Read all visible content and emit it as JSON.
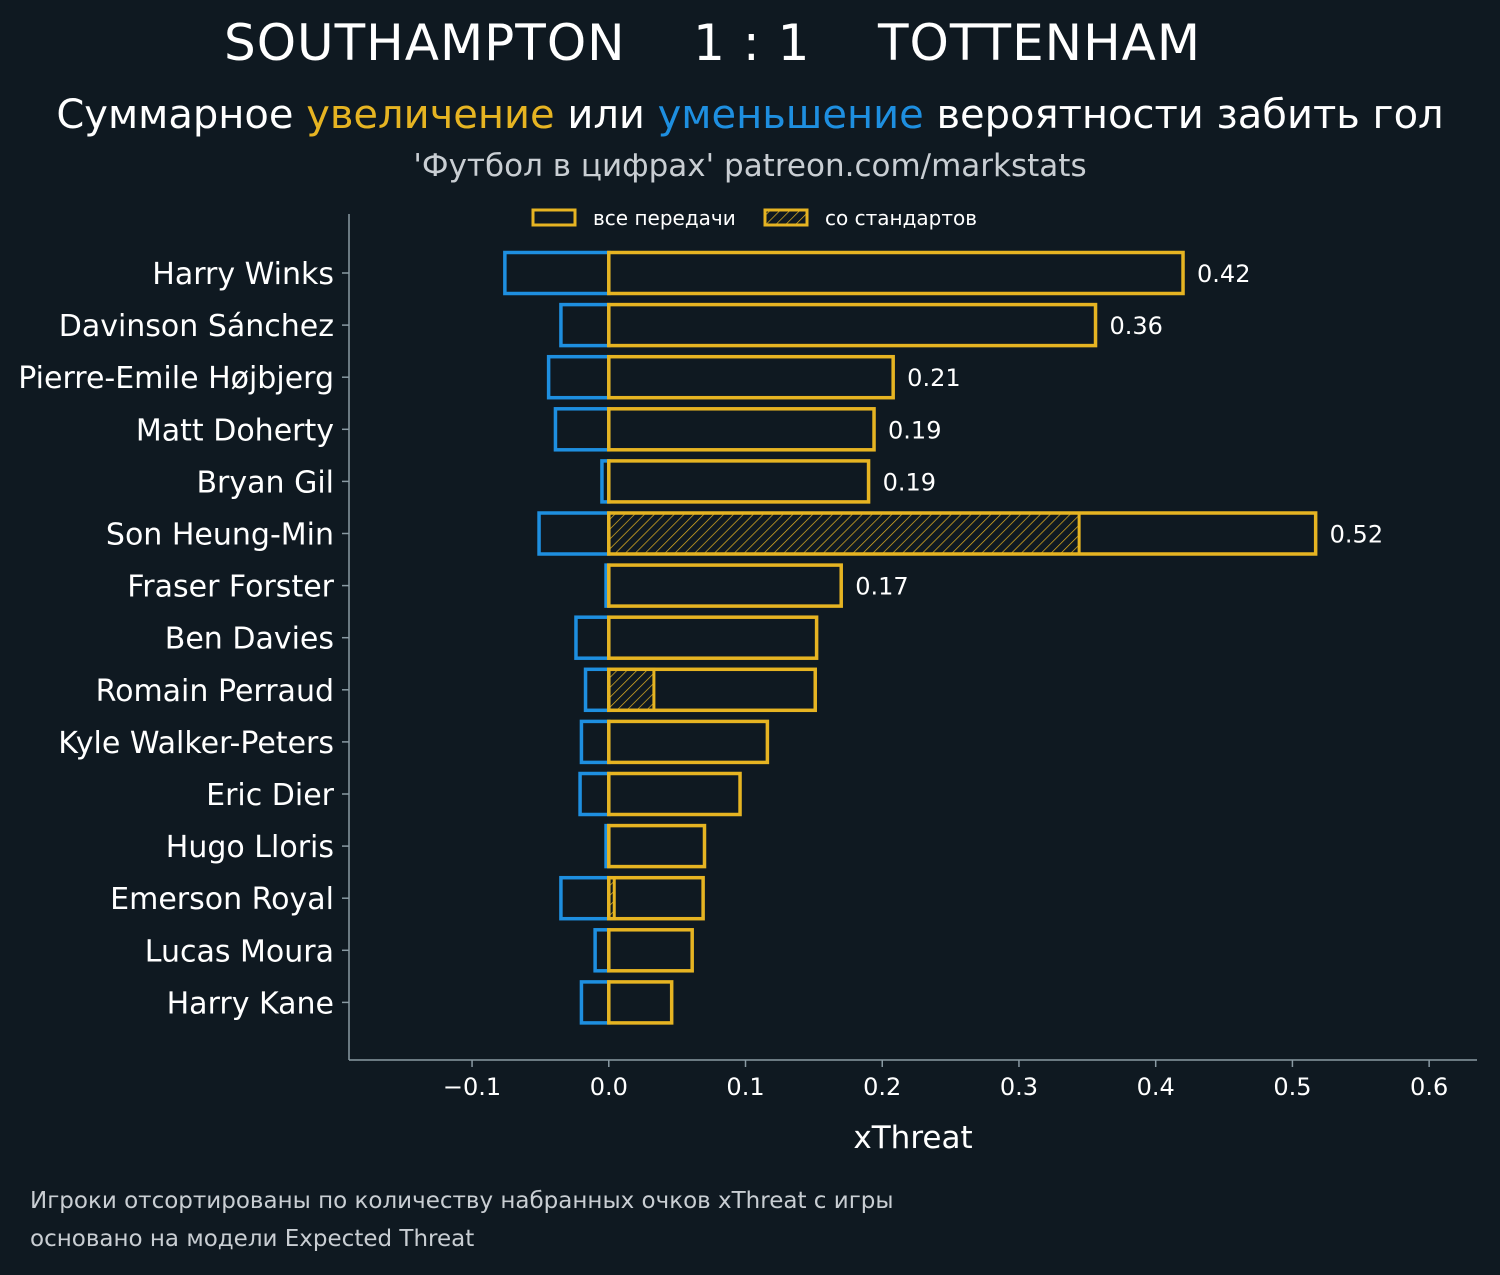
{
  "header": {
    "title": "SOUTHAMPTON    1 : 1    TOTTENHAM",
    "subtitle_parts": [
      {
        "text": "Суммарное ",
        "color": "#ffffff"
      },
      {
        "text": "увеличение",
        "color": "#e6b422"
      },
      {
        "text": " или ",
        "color": "#ffffff"
      },
      {
        "text": "уменьшение",
        "color": "#1e8fe0"
      },
      {
        "text": " вероятности забить гол",
        "color": "#ffffff"
      }
    ],
    "credit": "'Футбол в цифрах' patreon.com/markstats"
  },
  "footer": {
    "line1": "Игроки отсортированы по количеству набранных очков xThreat с игры",
    "line2": "основано на модели Expected Threat"
  },
  "colors": {
    "background": "#0f1921",
    "positive": "#e6b422",
    "negative": "#1e8fe0",
    "axis": "#8a9aa3"
  },
  "chart_data": {
    "type": "bar",
    "orientation": "horizontal",
    "xlabel": "xThreat",
    "xlim": [
      -0.19,
      0.635
    ],
    "xticks": [
      -0.1,
      0.0,
      0.1,
      0.2,
      0.3,
      0.4,
      0.5,
      0.6
    ],
    "xtick_labels": [
      "−0.1",
      "0.0",
      "0.1",
      "0.2",
      "0.3",
      "0.4",
      "0.5",
      "0.6"
    ],
    "legend": {
      "position": "top",
      "entries": [
        {
          "label": "все передачи",
          "style": "outline"
        },
        {
          "label": "со стандартов",
          "style": "hatched"
        }
      ]
    },
    "players": [
      {
        "name": "Harry Winks",
        "positive": 0.42,
        "negative": -0.076,
        "set_piece": 0,
        "label": "0.42"
      },
      {
        "name": "Davinson Sánchez",
        "positive": 0.356,
        "negative": -0.035,
        "set_piece": 0,
        "label": "0.36"
      },
      {
        "name": "Pierre-Emile Højbjerg",
        "positive": 0.208,
        "negative": -0.044,
        "set_piece": 0,
        "label": "0.21"
      },
      {
        "name": "Matt Doherty",
        "positive": 0.194,
        "negative": -0.039,
        "set_piece": 0,
        "label": "0.19"
      },
      {
        "name": "Bryan Gil",
        "positive": 0.19,
        "negative": -0.005,
        "set_piece": 0,
        "label": "0.19"
      },
      {
        "name": "Son Heung-Min",
        "positive": 0.517,
        "negative": -0.051,
        "set_piece": 0.344,
        "label": "0.52"
      },
      {
        "name": "Fraser Forster",
        "positive": 0.17,
        "negative": -0.002,
        "set_piece": 0,
        "label": "0.17"
      },
      {
        "name": "Ben Davies",
        "positive": 0.152,
        "negative": -0.024,
        "set_piece": 0,
        "label": ""
      },
      {
        "name": "Romain Perraud",
        "positive": 0.151,
        "negative": -0.017,
        "set_piece": 0.033,
        "label": ""
      },
      {
        "name": "Kyle Walker-Peters",
        "positive": 0.116,
        "negative": -0.02,
        "set_piece": 0,
        "label": ""
      },
      {
        "name": "Eric Dier",
        "positive": 0.096,
        "negative": -0.021,
        "set_piece": 0,
        "label": ""
      },
      {
        "name": "Hugo Lloris",
        "positive": 0.07,
        "negative": -0.002,
        "set_piece": 0,
        "label": ""
      },
      {
        "name": "Emerson Royal",
        "positive": 0.069,
        "negative": -0.035,
        "set_piece": 0.004,
        "label": ""
      },
      {
        "name": "Lucas Moura",
        "positive": 0.061,
        "negative": -0.01,
        "set_piece": 0,
        "label": ""
      },
      {
        "name": "Harry Kane",
        "positive": 0.046,
        "negative": -0.02,
        "set_piece": 0,
        "label": ""
      }
    ]
  }
}
